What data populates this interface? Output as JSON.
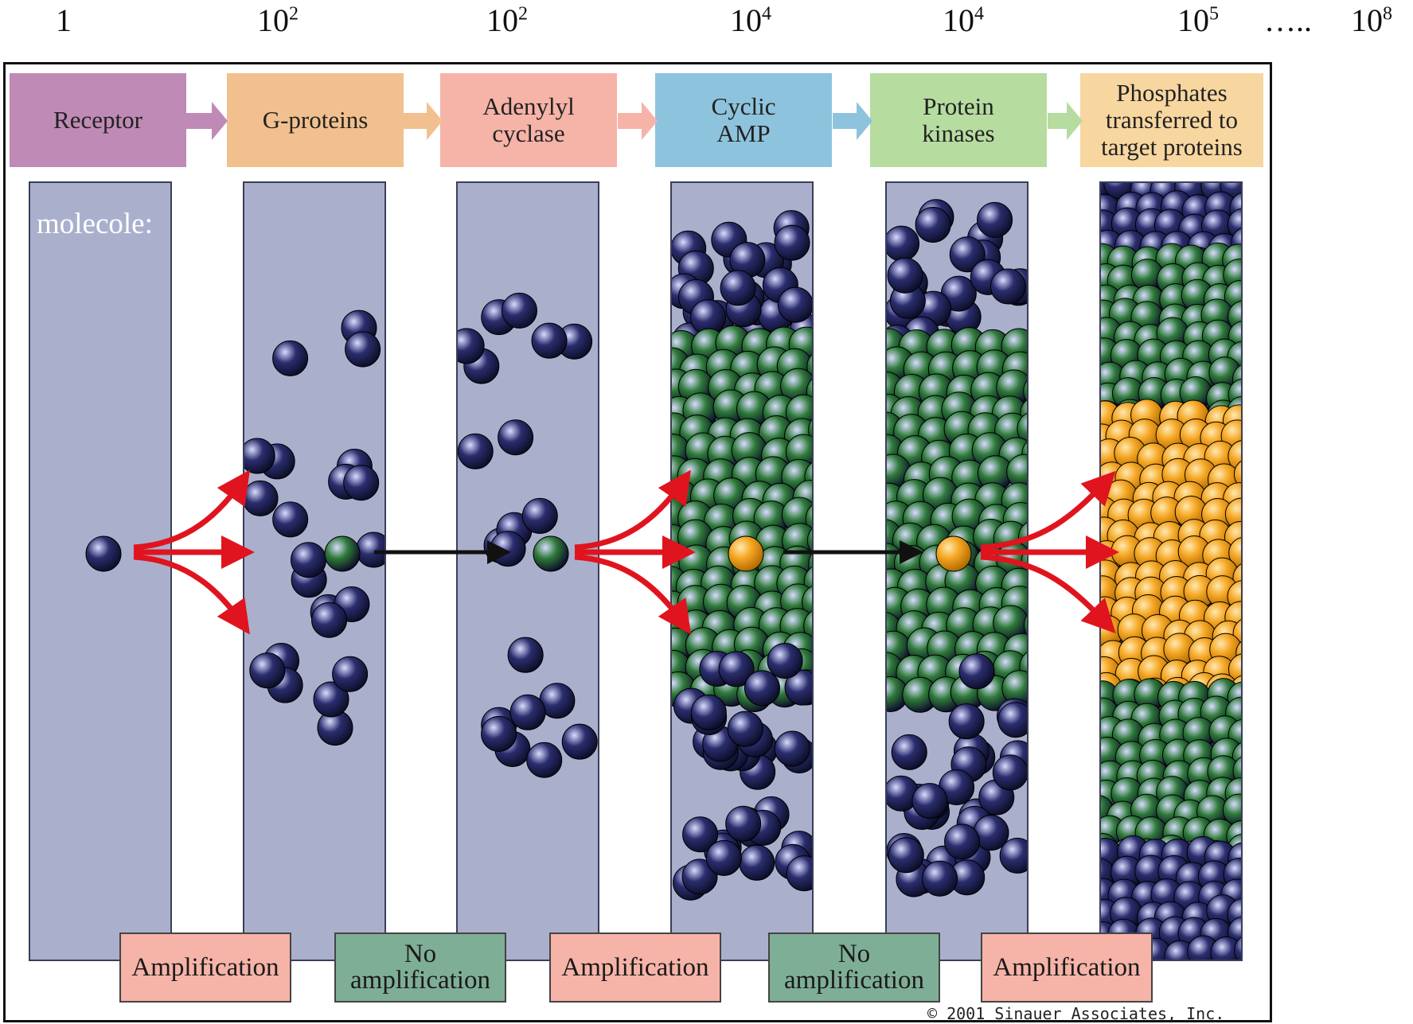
{
  "counts": [
    {
      "base": "1",
      "exp": ""
    },
    {
      "base": "10",
      "exp": "2"
    },
    {
      "base": "10",
      "exp": "2"
    },
    {
      "base": "10",
      "exp": "4"
    },
    {
      "base": "10",
      "exp": "4"
    },
    {
      "base": "10",
      "exp": "5"
    },
    {
      "base": "…..",
      "exp": ""
    },
    {
      "base": "10",
      "exp": "8"
    }
  ],
  "stages": [
    {
      "label": "Receptor",
      "color": "#c08ab6"
    },
    {
      "label": "G-proteins",
      "color": "#f2c08e"
    },
    {
      "label": "Adenylyl\ncyclase",
      "color": "#f6b3a8"
    },
    {
      "label": "Cyclic\nAMP",
      "color": "#8ec3dd"
    },
    {
      "label": "Protein\nkinases",
      "color": "#b6dca0"
    },
    {
      "label": "Phosphates\ntransferred to\ntarget proteins",
      "color": "#f7d6a0"
    }
  ],
  "molecule_label": "molecole:",
  "steps": [
    {
      "label": "Amplification",
      "kind": "amplification"
    },
    {
      "label": "No\namplification",
      "kind": "none"
    },
    {
      "label": "Amplification",
      "kind": "amplification"
    },
    {
      "label": "No\namplification",
      "kind": "none"
    },
    {
      "label": "Amplification",
      "kind": "amplification"
    }
  ],
  "molecule_colors": {
    "blue": "#2b2d6e",
    "green": "#2f7a3a",
    "orange": "#f5a623"
  },
  "copyright": "© 2001 Sinauer Associates, Inc."
}
